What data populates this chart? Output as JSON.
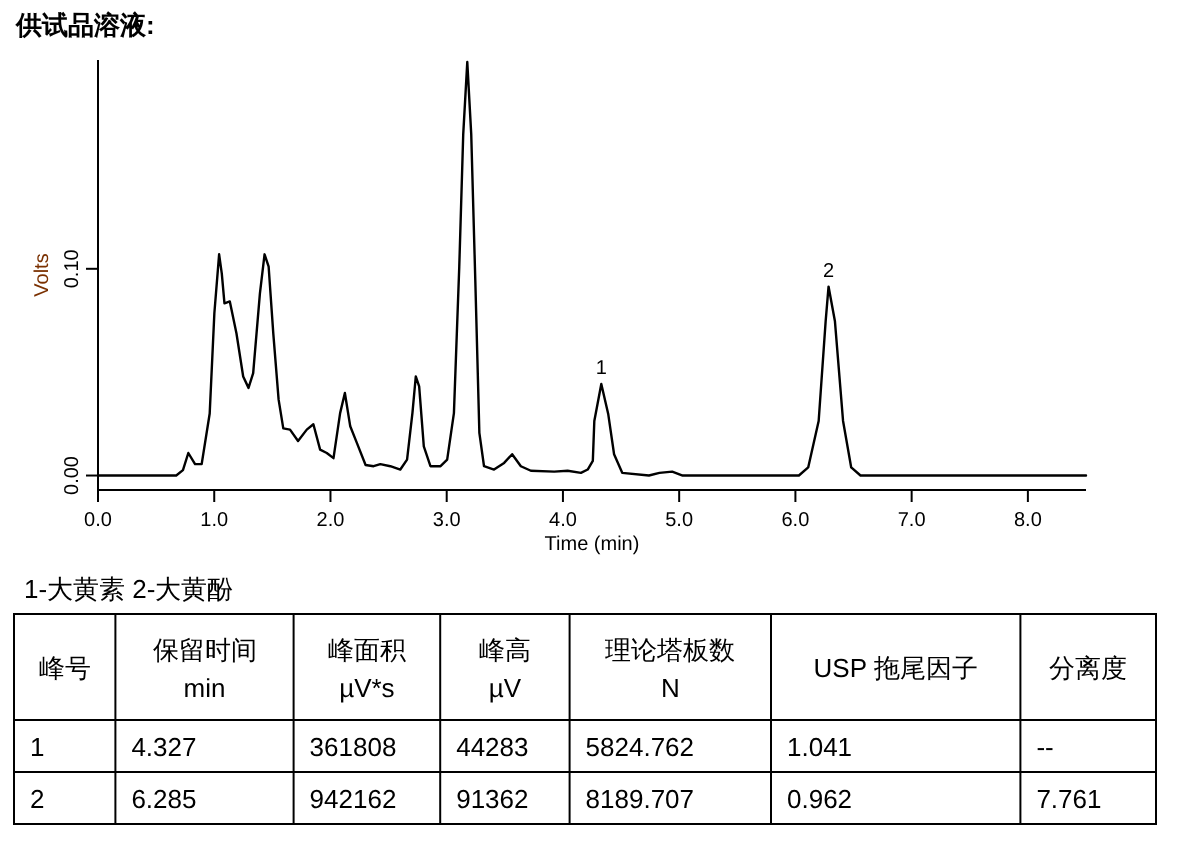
{
  "chart_data": [
    {
      "type": "line",
      "title": "供试品溶液:",
      "xlabel": "Time (min)",
      "ylabel": "Volts",
      "x": [
        0,
        0.673,
        0.731,
        0.777,
        0.835,
        0.892,
        0.961,
        1.001,
        1.042,
        1.065,
        1.088,
        1.134,
        1.191,
        1.249,
        1.295,
        1.335,
        1.393,
        1.433,
        1.468,
        1.508,
        1.554,
        1.594,
        1.652,
        1.721,
        1.796,
        1.853,
        1.911,
        1.968,
        2.026,
        2.083,
        2.124,
        2.17,
        2.227,
        2.302,
        2.371,
        2.429,
        2.515,
        2.601,
        2.659,
        2.705,
        2.734,
        2.763,
        2.803,
        2.86,
        2.947,
        3.004,
        3.062,
        3.108,
        3.142,
        3.177,
        3.211,
        3.246,
        3.281,
        3.321,
        3.407,
        3.494,
        3.563,
        3.638,
        3.724,
        3.925,
        4.04,
        4.155,
        4.213,
        4.257,
        4.27,
        4.33,
        4.39,
        4.44,
        4.51,
        4.74,
        4.83,
        4.94,
        5.03,
        6.03,
        6.11,
        6.2,
        6.26,
        6.285,
        6.34,
        6.41,
        6.48,
        6.56,
        8.5
      ],
      "series": [
        {
          "color": "#000000",
          "values": [
            0,
            0,
            0.0026,
            0.0109,
            0.0055,
            0.0055,
            0.03,
            0.0785,
            0.107,
            0.0977,
            0.0833,
            0.0842,
            0.0688,
            0.0479,
            0.0424,
            0.0495,
            0.0881,
            0.107,
            0.101,
            0.0688,
            0.0367,
            0.0228,
            0.0222,
            0.0167,
            0.0222,
            0.0248,
            0.0125,
            0.0109,
            0.0084,
            0.0302,
            0.0399,
            0.0238,
            0.0158,
            0.0051,
            0.0045,
            0.0055,
            0.0045,
            0.0029,
            0.0077,
            0.0302,
            0.0479,
            0.0431,
            0.0141,
            0.0045,
            0.0045,
            0.0077,
            0.0302,
            0.101,
            0.165,
            0.2,
            0.165,
            0.0945,
            0.0206,
            0.0045,
            0.0029,
            0.0061,
            0.0103,
            0.0045,
            0.0023,
            0.0019,
            0.0023,
            0.0013,
            0.0029,
            0.0071,
            0.0264,
            0.0443,
            0.0296,
            0.0103,
            0.0013,
            0,
            0.0013,
            0.0019,
            0,
            0,
            0.0039,
            0.0264,
            0.0746,
            0.0914,
            0.0746,
            0.0264,
            0.0039,
            0,
            0
          ]
        }
      ],
      "xlim": [
        0,
        8.5
      ],
      "ylim": [
        -0.007,
        0.201
      ],
      "xticks": [
        {
          "value": 0,
          "label": "0.0"
        },
        {
          "value": 1,
          "label": "1.0"
        },
        {
          "value": 2,
          "label": "2.0"
        },
        {
          "value": 3,
          "label": "3.0"
        },
        {
          "value": 4,
          "label": "4.0"
        },
        {
          "value": 5,
          "label": "5.0"
        },
        {
          "value": 6,
          "label": "6.0"
        },
        {
          "value": 7,
          "label": "7.0"
        },
        {
          "value": 8,
          "label": "8.0"
        }
      ],
      "yticks": [
        {
          "value": 0,
          "label": "0.00"
        },
        {
          "value": 0.1,
          "label": "0.10"
        }
      ],
      "annotations": [
        {
          "text": "1",
          "x": 4.33,
          "y": 0.0443
        },
        {
          "text": "2",
          "x": 6.285,
          "y": 0.0914
        }
      ]
    },
    {
      "type": "other",
      "title": "1-大黄素 2-大黄酚",
      "categories": [
        "峰号",
        "保留时间\nmin",
        "峰面积\nµV*s",
        "峰高\nµV",
        "理论塔板数\nN",
        "USP 拖尾因子",
        "分离度"
      ],
      "annotations": [
        "1",
        "4.327",
        "361808",
        "44283",
        "5824.762",
        "1.041",
        "--",
        "2",
        "6.285",
        "942162",
        "91362",
        "8189.707",
        "0.962",
        "7.761"
      ]
    }
  ]
}
